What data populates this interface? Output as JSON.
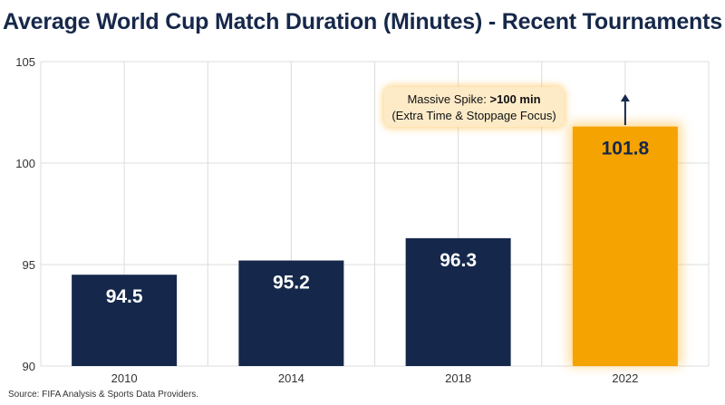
{
  "colors": {
    "bar_default": "#15284b",
    "bar_highlight": "#f5a300",
    "highlight_glow": "#ffb938",
    "grid": "#dcdcdc",
    "axis_text": "#333333",
    "annotation_bg": "#fdebc8",
    "arrow": "#15284b"
  },
  "chart_data": {
    "type": "bar",
    "title": "Average World Cup Match Duration (Minutes) - Recent Tournaments",
    "xlabel": "",
    "ylabel": "",
    "categories": [
      "2010",
      "2014",
      "2018",
      "2022"
    ],
    "values": [
      94.5,
      95.2,
      96.3,
      101.8
    ],
    "value_labels": [
      "94.5",
      "95.2",
      "96.3",
      "101.8"
    ],
    "highlight_index": 3,
    "ylim": [
      90,
      105
    ],
    "yticks": [
      90,
      95,
      100,
      105
    ],
    "grid": true,
    "annotation": {
      "line1_prefix": "Massive Spike: ",
      "line1_bold": ">100 min",
      "line2": "(Extra Time & Stoppage Focus)"
    },
    "source": "Source: FIFA Analysis & Sports Data Providers."
  }
}
